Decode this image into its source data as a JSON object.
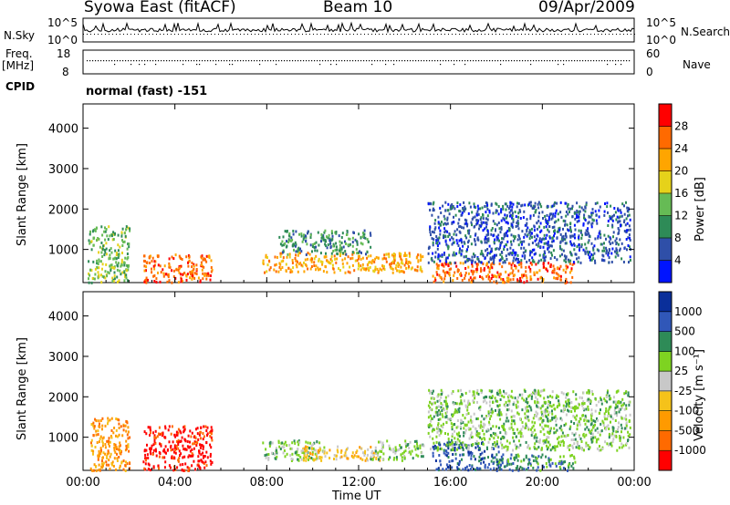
{
  "header": {
    "station": "Syowa East (fitACF)",
    "beam": "Beam 10",
    "date": "09/Apr/2009"
  },
  "strip_panels": {
    "nsky_label": "N.Sky",
    "nsky_axis_top": "10^5",
    "nsky_axis_bottom": "10^0",
    "nsearch_label": "N.Search",
    "nsearch_axis_top": "10^5",
    "nsearch_axis_bottom": "10^0",
    "freq_label_1": "Freq.",
    "freq_label_2": "[MHz]",
    "freq_axis_top": "18",
    "freq_axis_bottom": "8",
    "nave_label": "Nave",
    "nave_axis_top": "60",
    "nave_axis_bottom": "0",
    "cpid_label": "CPID",
    "cpid_value": "normal (fast) -151"
  },
  "x_axis": {
    "title": "Time UT",
    "ticks": [
      "00:00",
      "04:00",
      "08:00",
      "12:00",
      "16:00",
      "20:00",
      "00:00"
    ]
  },
  "chart_data": [
    {
      "type": "heatmap",
      "name": "power",
      "ylabel": "Slant Range [km]",
      "yticks": [
        1000,
        2000,
        3000,
        4000
      ],
      "ylim": [
        180,
        4600
      ],
      "xlim_hours": [
        0,
        24
      ],
      "colorbar_label": "Power [dB]",
      "colorbar_ticks": [
        "28",
        "24",
        "20",
        "16",
        "12",
        "8",
        "4"
      ],
      "colorbar_colors": [
        "#0014ff",
        "#2f4fa8",
        "#2e8b57",
        "#66bb55",
        "#e6d21a",
        "#ffa500",
        "#ff6a00",
        "#ff0000"
      ],
      "regions": [
        {
          "t0": 0.2,
          "t1": 2.0,
          "r0": 200,
          "r1": 1600,
          "level": 3
        },
        {
          "t0": 2.6,
          "t1": 5.6,
          "r0": 200,
          "r1": 900,
          "level": 6
        },
        {
          "t0": 7.8,
          "t1": 14.8,
          "r0": 450,
          "r1": 950,
          "level": 5
        },
        {
          "t0": 8.5,
          "t1": 12.5,
          "r0": 900,
          "r1": 1500,
          "level": 2
        },
        {
          "t0": 15.2,
          "t1": 21.4,
          "r0": 200,
          "r1": 700,
          "level": 6
        },
        {
          "t0": 15.0,
          "t1": 23.8,
          "r0": 700,
          "r1": 2200,
          "level": 1
        }
      ]
    },
    {
      "type": "heatmap",
      "name": "velocity",
      "ylabel": "Slant Range [km]",
      "yticks": [
        1000,
        2000,
        3000,
        4000
      ],
      "ylim": [
        180,
        4600
      ],
      "xlim_hours": [
        0,
        24
      ],
      "colorbar_label": "Velocity [m s⁻¹]",
      "colorbar_ticks": [
        "1000",
        "500",
        "100",
        "25",
        "-25",
        "-100",
        "-500",
        "-1000"
      ],
      "colorbar_colors": [
        "#ff0000",
        "#ff6a00",
        "#ff9a00",
        "#f5c21a",
        "#c8c8c8",
        "#7ed321",
        "#2e8b57",
        "#3057b8",
        "#0a2f9a"
      ],
      "regions": [
        {
          "t0": 0.3,
          "t1": 2.0,
          "r0": 200,
          "r1": 1500,
          "level": 2
        },
        {
          "t0": 2.6,
          "t1": 5.6,
          "r0": 200,
          "r1": 1300,
          "level": 0
        },
        {
          "t0": 7.8,
          "t1": 10.5,
          "r0": 450,
          "r1": 950,
          "level": 5
        },
        {
          "t0": 9.5,
          "t1": 13.0,
          "r0": 450,
          "r1": 800,
          "level": 3
        },
        {
          "t0": 12.5,
          "t1": 14.8,
          "r0": 450,
          "r1": 950,
          "level": 5
        },
        {
          "t0": 15.2,
          "t1": 18.2,
          "r0": 200,
          "r1": 900,
          "level": 7
        },
        {
          "t0": 18.0,
          "t1": 21.4,
          "r0": 200,
          "r1": 600,
          "level": 6
        },
        {
          "t0": 15.0,
          "t1": 23.8,
          "r0": 700,
          "r1": 2200,
          "level": 5
        }
      ]
    }
  ]
}
